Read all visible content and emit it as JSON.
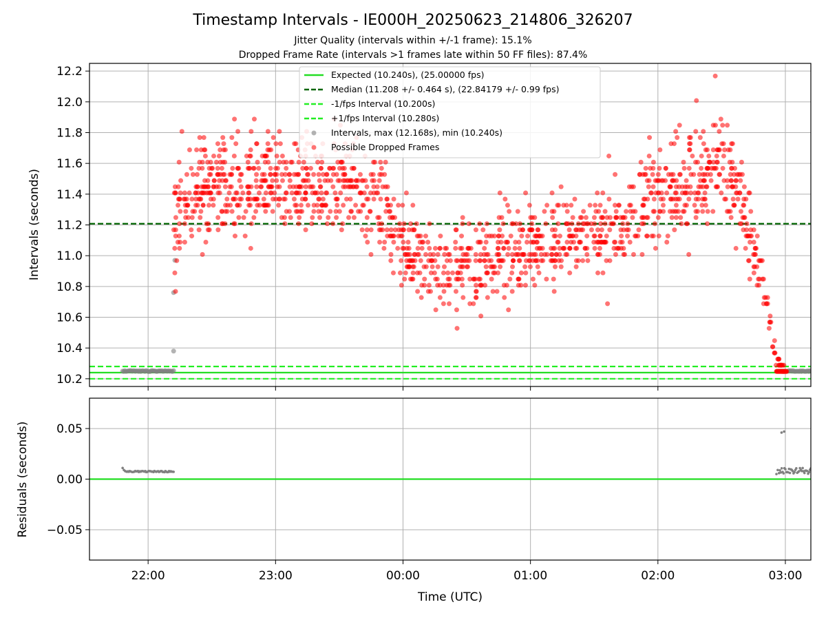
{
  "figure": {
    "title": "Timestamp Intervals - IE000H_20250623_214806_326207",
    "subtitle_1": "Jitter Quality (intervals within +/-1 frame): 15.1%",
    "subtitle_2": "Dropped Frame Rate (intervals >1 frames late within 50 FF files): 87.4%"
  },
  "colors": {
    "expected": "#22dd22",
    "median": "#006400",
    "band": "#22ee22",
    "normal_points": "#808080",
    "dropped_points": "#ff0000",
    "grid": "#b0b0b0"
  },
  "chart_data": [
    {
      "type": "scatter",
      "panel": "intervals",
      "xlabel": "",
      "ylabel": "Intervals (seconds)",
      "x_unit": "hours since 00:00 UTC (negative = previous day)",
      "xlim": [
        -2.46,
        3.2
      ],
      "ylim": [
        10.15,
        12.25
      ],
      "yticks": [
        10.2,
        10.4,
        10.6,
        10.8,
        11.0,
        11.2,
        11.4,
        11.6,
        11.8,
        12.0,
        12.2
      ],
      "ytick_labels": [
        "10.2",
        "10.4",
        "10.6",
        "10.8",
        "11.0",
        "11.2",
        "11.4",
        "11.6",
        "11.8",
        "12.0",
        "12.2"
      ],
      "grid": true,
      "legend_position": "top-center",
      "reference_lines": [
        {
          "name": "Expected (10.240s), (25.00000 fps)",
          "y": 10.24,
          "style": "solid"
        },
        {
          "name": "Median (11.208 +/- 0.464 s), (22.84179 +/- 0.99 fps)",
          "y": 11.208,
          "style": "dashed"
        },
        {
          "name": "-1/fps Interval (10.200s)",
          "y": 10.2,
          "style": "dashed"
        },
        {
          "name": "+1/fps Interval (10.280s)",
          "y": 10.28,
          "style": "dashed"
        }
      ],
      "series": [
        {
          "name": "Intervals, max (12.168s), min (10.240s)",
          "segments": [
            {
              "x_start": -2.2,
              "x_end": -1.8,
              "y": 10.25
            },
            {
              "x_start": 3.02,
              "x_end": 3.2,
              "y": 10.25
            }
          ],
          "points": [
            {
              "x": -1.8,
              "y": 10.38
            },
            {
              "x": -1.8,
              "y": 10.76
            },
            {
              "x": -1.79,
              "y": 10.97
            }
          ]
        },
        {
          "name": "Possible Dropped Frames",
          "profile": {
            "x": [
              -1.8,
              -1.7,
              -1.4,
              -1.0,
              -0.6,
              -0.3,
              -0.1,
              0.0,
              0.3,
              0.6,
              0.9,
              1.2,
              1.5,
              1.75,
              2.0,
              2.3,
              2.5,
              2.6,
              2.7,
              2.8,
              2.87,
              2.93,
              3.0
            ],
            "y_center": [
              11.15,
              11.42,
              11.45,
              11.45,
              11.45,
              11.42,
              11.25,
              11.05,
              10.9,
              10.95,
              11.05,
              11.1,
              11.15,
              11.2,
              11.4,
              11.5,
              11.6,
              11.5,
              11.2,
              10.9,
              10.6,
              10.3,
              10.25
            ],
            "y_spread": [
              0.3,
              0.35,
              0.32,
              0.3,
              0.3,
              0.3,
              0.28,
              0.25,
              0.25,
              0.25,
              0.25,
              0.25,
              0.25,
              0.3,
              0.3,
              0.3,
              0.3,
              0.25,
              0.2,
              0.15,
              0.12,
              0.05,
              0.01
            ]
          },
          "max": 12.168,
          "min": 10.24
        }
      ]
    },
    {
      "type": "scatter",
      "panel": "residuals",
      "xlabel": "Time (UTC)",
      "ylabel": "Residuals (seconds)",
      "xlim": [
        -2.46,
        3.2
      ],
      "ylim": [
        -0.08,
        0.08
      ],
      "yticks": [
        0.05,
        0.0,
        -0.05
      ],
      "ytick_labels": [
        "0.05",
        "0.00",
        "−0.05"
      ],
      "xticks": [
        -2,
        -1,
        0,
        1,
        2,
        3
      ],
      "xtick_labels": [
        "22:00",
        "23:00",
        "00:00",
        "01:00",
        "02:00",
        "03:00"
      ],
      "grid": true,
      "zero_line": 0.0,
      "series": [
        {
          "name": "residuals",
          "segments": [
            {
              "x_start": -2.18,
              "x_end": -1.8,
              "y": 0.0075
            },
            {
              "x_start": 2.95,
              "x_end": 3.2,
              "y": 0.008
            }
          ],
          "points": [
            {
              "x": -2.2,
              "y": 0.011
            },
            {
              "x": -2.19,
              "y": 0.009
            },
            {
              "x": 2.93,
              "y": 0.005
            },
            {
              "x": 2.94,
              "y": 0.009
            },
            {
              "x": 2.97,
              "y": 0.046
            },
            {
              "x": 2.99,
              "y": 0.047
            }
          ]
        }
      ]
    }
  ]
}
